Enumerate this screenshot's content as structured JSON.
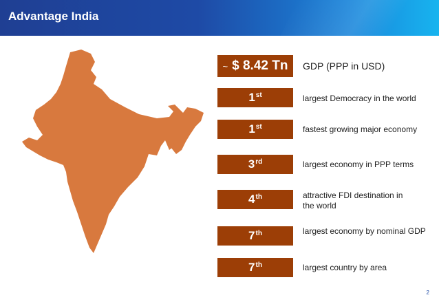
{
  "header": {
    "title": "Advantage India"
  },
  "gdp": {
    "tilde": "~",
    "value": "$ 8.42 Tn",
    "label": "GDP (PPP in USD)"
  },
  "facts": [
    {
      "rank": "1",
      "suffix": "st",
      "label": "largest Democracy in the world"
    },
    {
      "rank": "1",
      "suffix": "st",
      "label": "fastest growing major economy"
    },
    {
      "rank": "3",
      "suffix": "rd",
      "label": "largest economy in PPP terms"
    },
    {
      "rank": "4",
      "suffix": "th",
      "label": "attractive FDI destination in the world"
    },
    {
      "rank": "7",
      "suffix": "th",
      "label": "largest economy by nominal GDP"
    },
    {
      "rank": "7",
      "suffix": "th",
      "label": "largest country by area"
    }
  ],
  "footer": {
    "page_number": "2"
  },
  "colors": {
    "badge": "#9c3e06",
    "map": "#d8793e",
    "header": "#1f3f93"
  }
}
